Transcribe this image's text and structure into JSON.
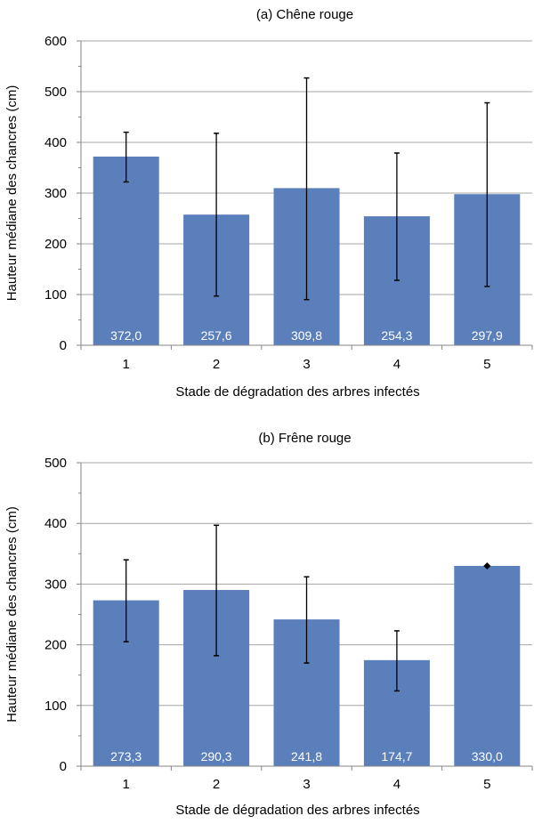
{
  "chart_data": [
    {
      "type": "bar",
      "title": "(a) Chêne rouge",
      "xlabel": "Stade de dégradation des arbres infectés",
      "ylabel": "Hauteur médiane des chancres (cm)",
      "categories": [
        "1",
        "2",
        "3",
        "4",
        "5"
      ],
      "values": [
        372.0,
        257.6,
        309.8,
        254.3,
        297.9
      ],
      "value_labels": [
        "372,0",
        "257,6",
        "309,8",
        "254,3",
        "297,9"
      ],
      "error_bars": [
        [
          322,
          420
        ],
        [
          97,
          418
        ],
        [
          90,
          527
        ],
        [
          128,
          379
        ],
        [
          116,
          478
        ]
      ],
      "ylim": [
        0,
        600
      ],
      "yticks": [
        0,
        100,
        200,
        300,
        400,
        500,
        600
      ],
      "grid": true,
      "colors": {
        "bar": "#5b7fbb",
        "grid": "#a6a6a6",
        "axis": "#868686",
        "label": "#ffffff"
      }
    },
    {
      "type": "bar",
      "title": "(b) Frêne rouge",
      "xlabel": "Stade de dégradation des arbres infectés",
      "ylabel": "Hauteur médiane des chancres (cm)",
      "categories": [
        "1",
        "2",
        "3",
        "4",
        "5"
      ],
      "values": [
        273.3,
        290.3,
        241.8,
        174.7,
        330.0
      ],
      "value_labels": [
        "273,3",
        "290,3",
        "241,8",
        "174,7",
        "330,0"
      ],
      "error_bars": [
        [
          205,
          340
        ],
        [
          182,
          397
        ],
        [
          170,
          312
        ],
        [
          124,
          223
        ],
        [
          330,
          330
        ]
      ],
      "ylim": [
        0,
        500
      ],
      "yticks": [
        0,
        100,
        200,
        300,
        400,
        500
      ],
      "grid": true,
      "colors": {
        "bar": "#5b7fbb",
        "grid": "#a6a6a6",
        "axis": "#868686",
        "label": "#ffffff"
      }
    }
  ]
}
